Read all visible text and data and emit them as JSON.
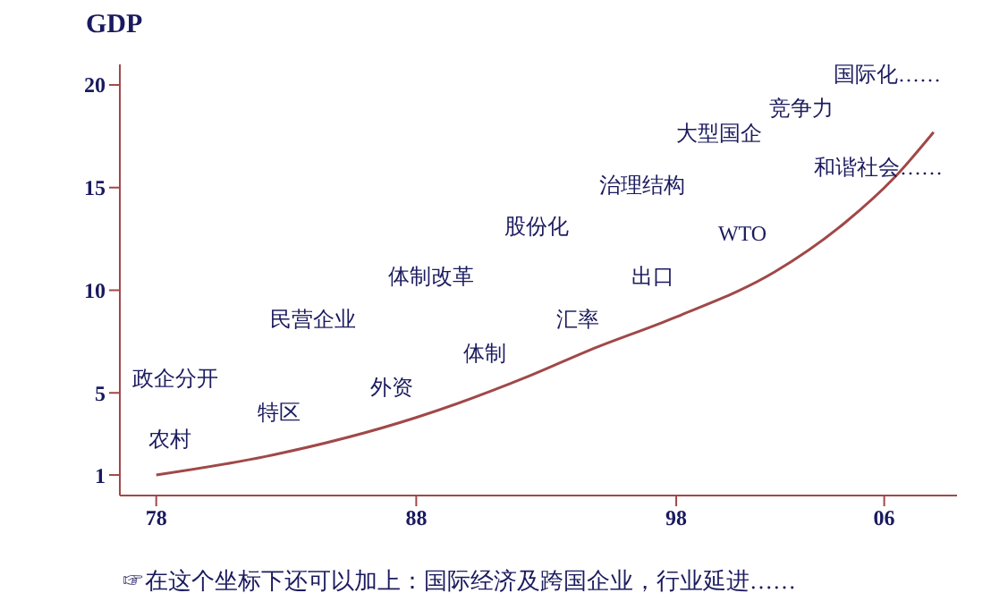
{
  "chart_data": {
    "type": "line",
    "ylabel": "GDP",
    "x": [
      1978,
      1982.2,
      1988,
      1992.3,
      1994.7,
      1998,
      2001.8,
      2004.5,
      2006.4,
      2007.9
    ],
    "series": [
      {
        "color": "#a04848",
        "values": [
          1,
          1.9,
          3.8,
          5.8,
          7.1,
          8.7,
          10.9,
          13.3,
          15.5,
          17.7
        ]
      }
    ],
    "xlim": [
      1976.6,
      2008.8
    ],
    "ylim": [
      0,
      21
    ],
    "xticks": [
      {
        "value": 1978,
        "label": "78"
      },
      {
        "value": 1988,
        "label": "88"
      },
      {
        "value": 1998,
        "label": "98"
      },
      {
        "value": 2006,
        "label": "06"
      }
    ],
    "yticks": [
      1,
      5,
      10,
      15,
      20
    ],
    "marker": "none",
    "line_style": "solid",
    "annotations": [
      "国际化……",
      "竞争力",
      "大型国企",
      "和谐社会……",
      "治理结构",
      "股份化",
      "WTO",
      "体制改革",
      "出口",
      "民营企业",
      "汇率",
      "体制",
      "政企分开",
      "外资",
      "特区",
      "农村",
      "☞在这个坐标下还可以加上：国际经济及跨国企业，行业延进……"
    ]
  }
}
